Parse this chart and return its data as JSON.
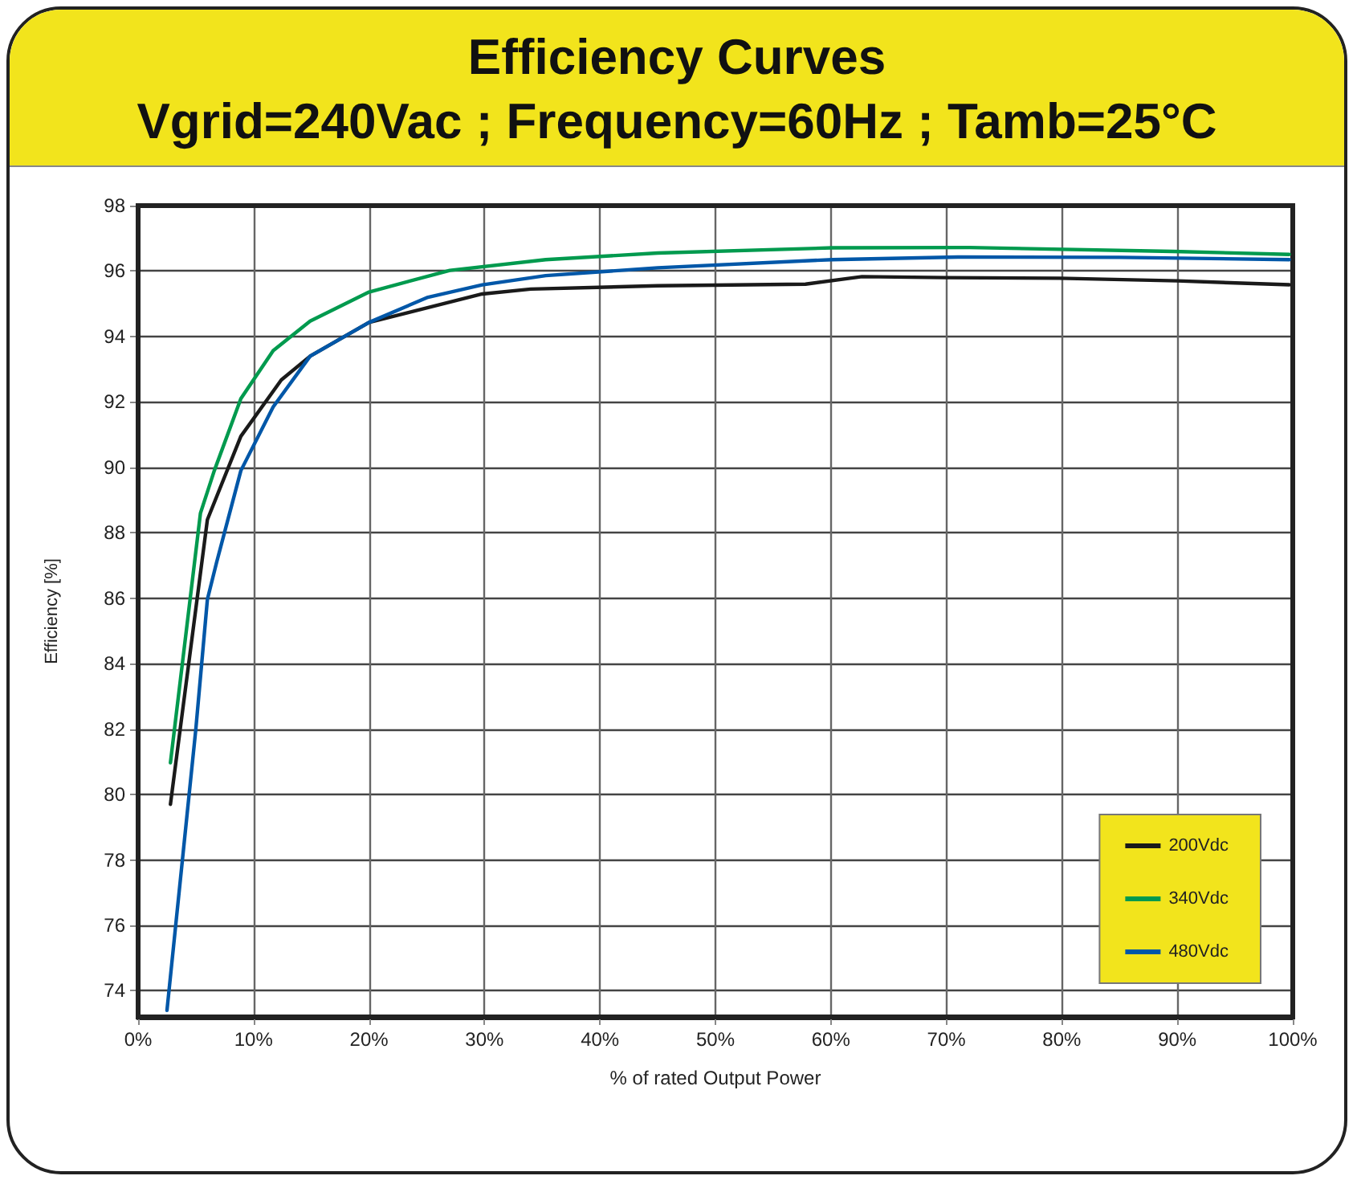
{
  "chart_data": {
    "type": "line",
    "title": "Efficiency Curves",
    "subtitle": "Vgrid=240Vac ; Frequency=60Hz ; Tamb=25°C",
    "xlabel": "% of rated Output Power",
    "ylabel": "Efficiency [%]",
    "xlim": [
      0,
      100
    ],
    "xticks": [
      {
        "value": 0,
        "label": "0%"
      },
      {
        "value": 10,
        "label": "10%"
      },
      {
        "value": 20,
        "label": "20%"
      },
      {
        "value": 30,
        "label": "30%"
      },
      {
        "value": 40,
        "label": "40%"
      },
      {
        "value": 50,
        "label": "50%"
      },
      {
        "value": 60,
        "label": "60%"
      },
      {
        "value": 70,
        "label": "70%"
      },
      {
        "value": 80,
        "label": "80%"
      },
      {
        "value": 90,
        "label": "90%"
      },
      {
        "value": 100,
        "label": "100%"
      }
    ],
    "ylim": [
      73.2,
      98
    ],
    "yticks": [
      74,
      76,
      78,
      80,
      82,
      84,
      86,
      88,
      90,
      92,
      94,
      96,
      98
    ],
    "grid": true,
    "legend": "bottom right",
    "marker": "none",
    "line_style": "solid",
    "series": [
      {
        "name": "200Vdc",
        "color": "#1a1a1a",
        "x": [
          2.8,
          6.0,
          8.9,
          12.4,
          14.9,
          20.0,
          29.8,
          34,
          45,
          57.8,
          62.7,
          70,
          79.8,
          90,
          99.7
        ],
        "values": [
          79.7,
          88.4,
          90.95,
          92.67,
          93.4,
          94.43,
          95.3,
          95.45,
          95.55,
          95.6,
          95.83,
          95.8,
          95.78,
          95.7,
          95.58
        ]
      },
      {
        "name": "340Vdc",
        "color": "#009a4e",
        "x": [
          2.8,
          5.4,
          6.6,
          8.9,
          11.7,
          14.9,
          20.0,
          27.0,
          35.3,
          45,
          60.1,
          72.0,
          89.6,
          99.7
        ],
        "values": [
          80.97,
          88.6,
          89.9,
          92.1,
          93.57,
          94.47,
          95.36,
          96.02,
          96.35,
          96.55,
          96.71,
          96.72,
          96.6,
          96.51
        ]
      },
      {
        "name": "480Vdc",
        "color": "#0057a8",
        "x": [
          2.5,
          5.0,
          6.0,
          6.8,
          8.9,
          11.7,
          14.9,
          20.0,
          25.1,
          29.8,
          35.3,
          45,
          60.1,
          71.0,
          85,
          99.7
        ],
        "values": [
          73.4,
          82.0,
          85.96,
          87.1,
          89.9,
          91.85,
          93.4,
          94.43,
          95.2,
          95.58,
          95.86,
          96.1,
          96.35,
          96.43,
          96.42,
          96.35
        ]
      }
    ]
  }
}
